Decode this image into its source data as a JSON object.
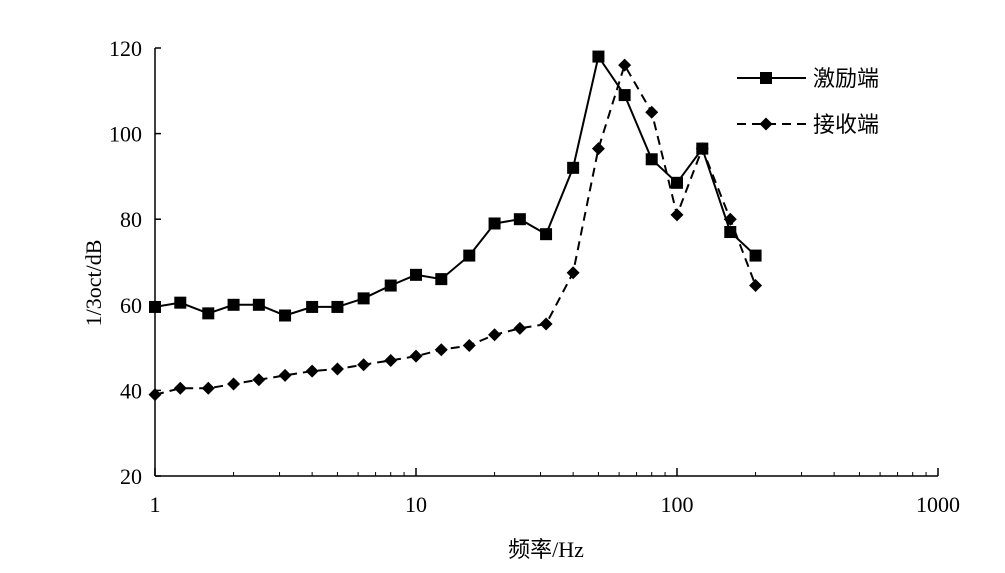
{
  "chart_data": {
    "type": "line",
    "x_scale": "log",
    "xlabel": "频率/Hz",
    "ylabel": "1/3oct/dB",
    "xlim": [
      1,
      1000
    ],
    "ylim": [
      20,
      120
    ],
    "xticks": [
      1,
      10,
      100,
      1000
    ],
    "xtick_labels": [
      "1",
      "10",
      "100",
      "1000"
    ],
    "yticks": [
      20,
      40,
      60,
      80,
      100,
      120
    ],
    "ytick_labels": [
      "20",
      "40",
      "60",
      "80",
      "100",
      "120"
    ],
    "grid": false,
    "legend_position": "top-right",
    "series": [
      {
        "name": "激励端",
        "marker": "square",
        "line_style": "solid",
        "color": "#000000",
        "x": [
          1,
          1.25,
          1.6,
          2,
          2.5,
          3.15,
          4,
          5,
          6.3,
          8,
          10,
          12.5,
          16,
          20,
          25,
          31.5,
          40,
          50,
          63,
          80,
          100,
          125,
          160,
          200
        ],
        "y": [
          59.5,
          60.5,
          58,
          60,
          60,
          57.5,
          59.5,
          59.5,
          61.5,
          64.5,
          67,
          66,
          71.5,
          79,
          80,
          76.5,
          92,
          118,
          109,
          94,
          88.5,
          96.5,
          77,
          71.5
        ]
      },
      {
        "name": "接收端",
        "marker": "diamond",
        "line_style": "dashed",
        "color": "#000000",
        "x": [
          1,
          1.25,
          1.6,
          2,
          2.5,
          3.15,
          4,
          5,
          6.3,
          8,
          10,
          12.5,
          16,
          20,
          25,
          31.5,
          40,
          50,
          63,
          80,
          100,
          125,
          160,
          200
        ],
        "y": [
          39,
          40.5,
          40.5,
          41.5,
          42.5,
          43.5,
          44.5,
          45,
          46,
          47,
          48,
          49.5,
          50.5,
          53,
          54.5,
          55.5,
          67.5,
          96.5,
          116,
          105,
          81,
          96.5,
          80,
          64.5
        ]
      }
    ]
  }
}
